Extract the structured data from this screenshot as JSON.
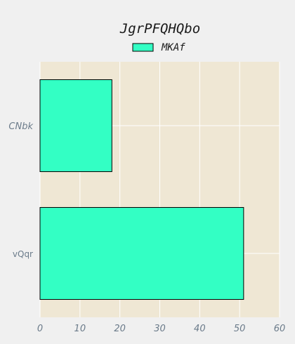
{
  "chart_data": {
    "type": "bar",
    "orientation": "horizontal",
    "title": "JgrPFQHQbo",
    "xlabel": "",
    "ylabel": "",
    "categories": [
      "CNbk",
      "vQqr"
    ],
    "series": [
      {
        "name": "MKAf",
        "values": [
          18,
          51
        ],
        "color": "#33ffc4"
      }
    ],
    "xlim": [
      0,
      60
    ],
    "xticks": [
      "0",
      "10",
      "20",
      "30",
      "40",
      "50",
      "60"
    ],
    "grid": true,
    "legend": "top-center",
    "colors": {
      "plot_background": "#efe7d4",
      "page_background": "#f0f0f0",
      "grid": "#ffffff",
      "bar_edge": "#000000",
      "tick_label": "#6b7b8a"
    }
  }
}
